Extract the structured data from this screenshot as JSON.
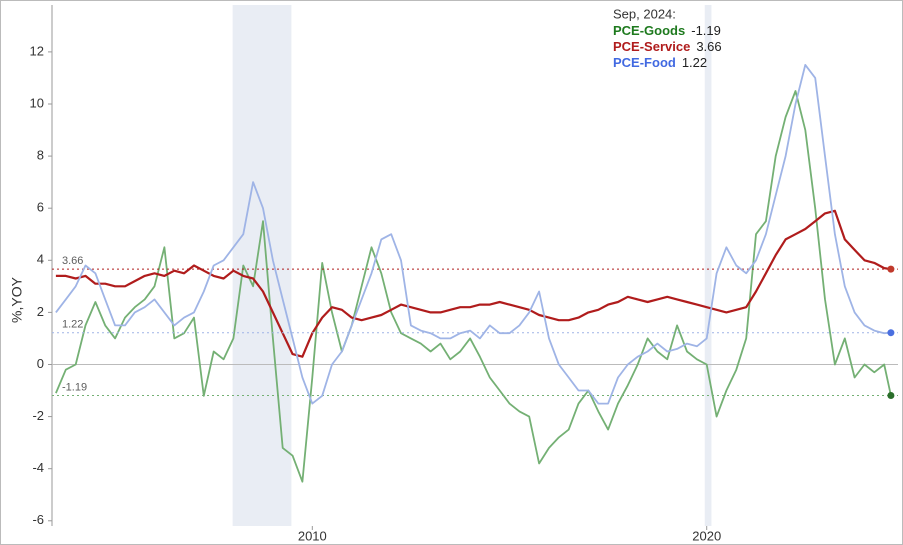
{
  "chart_data": {
    "type": "line",
    "y_label": "%,YOY",
    "legend_title": "Sep, 2024:",
    "x": [
      2003.5,
      2003.75,
      2004,
      2004.25,
      2004.5,
      2004.75,
      2005,
      2005.25,
      2005.5,
      2005.75,
      2006,
      2006.25,
      2006.5,
      2006.75,
      2007,
      2007.25,
      2007.5,
      2007.75,
      2008,
      2008.25,
      2008.5,
      2008.75,
      2009,
      2009.25,
      2009.5,
      2009.75,
      2010,
      2010.25,
      2010.5,
      2010.75,
      2011,
      2011.25,
      2011.5,
      2011.75,
      2012,
      2012.25,
      2012.5,
      2012.75,
      2013,
      2013.25,
      2013.5,
      2013.75,
      2014,
      2014.25,
      2014.5,
      2014.75,
      2015,
      2015.25,
      2015.5,
      2015.75,
      2016,
      2016.25,
      2016.5,
      2016.75,
      2017,
      2017.25,
      2017.5,
      2017.75,
      2018,
      2018.25,
      2018.5,
      2018.75,
      2019,
      2019.25,
      2019.5,
      2019.75,
      2020,
      2020.25,
      2020.5,
      2020.75,
      2021,
      2021.25,
      2021.5,
      2021.75,
      2022,
      2022.25,
      2022.5,
      2022.75,
      2023,
      2023.25,
      2023.5,
      2023.75,
      2024,
      2024.25,
      2024.5,
      2024.67
    ],
    "series": [
      {
        "name": "PCE-Goods",
        "color": "#74b074",
        "label_color": "#1e7a1e",
        "dot_color": "#2a6e2a",
        "values": [
          -1.1,
          -0.2,
          0.0,
          1.5,
          2.4,
          1.5,
          1.0,
          1.8,
          2.2,
          2.5,
          3.0,
          4.5,
          1.0,
          1.2,
          1.8,
          -1.2,
          0.5,
          0.2,
          1.0,
          3.8,
          3.0,
          5.5,
          1.0,
          -3.2,
          -3.5,
          -4.5,
          -0.5,
          3.9,
          2.0,
          0.5,
          1.5,
          3.0,
          4.5,
          3.5,
          2.0,
          1.2,
          1.0,
          0.8,
          0.5,
          0.8,
          0.2,
          0.5,
          1.0,
          0.3,
          -0.5,
          -1.0,
          -1.5,
          -1.8,
          -2.0,
          -3.8,
          -3.2,
          -2.8,
          -2.5,
          -1.5,
          -1.0,
          -1.8,
          -2.5,
          -1.5,
          -0.8,
          0.0,
          1.0,
          0.5,
          0.2,
          1.5,
          0.5,
          0.2,
          0.0,
          -2.0,
          -1.0,
          -0.2,
          1.0,
          5.0,
          5.5,
          8.0,
          9.5,
          10.5,
          9.0,
          6.0,
          2.5,
          0.0,
          1.0,
          -0.5,
          0.0,
          -0.3,
          0.0,
          -1.19
        ]
      },
      {
        "name": "PCE-Service",
        "color": "#b01c1c",
        "label_color": "#b01c1c",
        "dot_color": "#c0392b",
        "values": [
          3.4,
          3.4,
          3.3,
          3.4,
          3.1,
          3.1,
          3.0,
          3.0,
          3.2,
          3.4,
          3.5,
          3.4,
          3.6,
          3.5,
          3.8,
          3.6,
          3.4,
          3.3,
          3.6,
          3.4,
          3.3,
          2.8,
          2.0,
          1.2,
          0.4,
          0.3,
          1.2,
          1.8,
          2.2,
          2.1,
          1.8,
          1.7,
          1.8,
          1.9,
          2.1,
          2.3,
          2.2,
          2.1,
          2.0,
          2.0,
          2.1,
          2.2,
          2.2,
          2.3,
          2.3,
          2.4,
          2.3,
          2.2,
          2.1,
          1.9,
          1.8,
          1.7,
          1.7,
          1.8,
          2.0,
          2.1,
          2.3,
          2.4,
          2.6,
          2.5,
          2.4,
          2.5,
          2.6,
          2.5,
          2.4,
          2.3,
          2.2,
          2.1,
          2.0,
          2.1,
          2.2,
          2.8,
          3.5,
          4.2,
          4.8,
          5.0,
          5.2,
          5.5,
          5.8,
          5.9,
          4.8,
          4.4,
          4.0,
          3.9,
          3.7,
          3.66
        ]
      },
      {
        "name": "PCE-Food",
        "color": "#9fb4e6",
        "label_color": "#4169e1",
        "dot_color": "#4a6fe0",
        "values": [
          2.0,
          2.5,
          3.0,
          3.8,
          3.5,
          2.5,
          1.5,
          1.5,
          2.0,
          2.2,
          2.5,
          2.0,
          1.5,
          1.8,
          2.0,
          2.8,
          3.8,
          4.0,
          4.5,
          5.0,
          7.0,
          6.0,
          4.0,
          2.5,
          1.0,
          -0.5,
          -1.5,
          -1.2,
          0.0,
          0.5,
          1.5,
          2.5,
          3.5,
          4.8,
          5.0,
          4.0,
          1.5,
          1.3,
          1.2,
          1.0,
          1.0,
          1.2,
          1.3,
          1.0,
          1.5,
          1.2,
          1.2,
          1.5,
          2.0,
          2.8,
          1.0,
          0.0,
          -0.5,
          -1.0,
          -1.0,
          -1.5,
          -1.5,
          -0.5,
          0.0,
          0.3,
          0.5,
          0.8,
          0.5,
          0.6,
          0.8,
          0.7,
          1.0,
          3.5,
          4.5,
          3.8,
          3.5,
          4.0,
          5.0,
          6.5,
          8.0,
          10.0,
          11.5,
          11.0,
          8.0,
          5.0,
          3.0,
          2.0,
          1.5,
          1.3,
          1.2,
          1.22
        ]
      }
    ],
    "shaded_periods": [
      [
        2007.98,
        2009.47
      ],
      [
        2019.95,
        2020.12
      ]
    ],
    "xlim": [
      2003.4,
      2024.85
    ],
    "xticks": [
      2010,
      2020
    ],
    "ylim": [
      -6.2,
      13.8
    ],
    "yticks": [
      -6,
      -4,
      -2,
      0,
      2,
      4,
      6,
      8,
      10,
      12
    ]
  }
}
